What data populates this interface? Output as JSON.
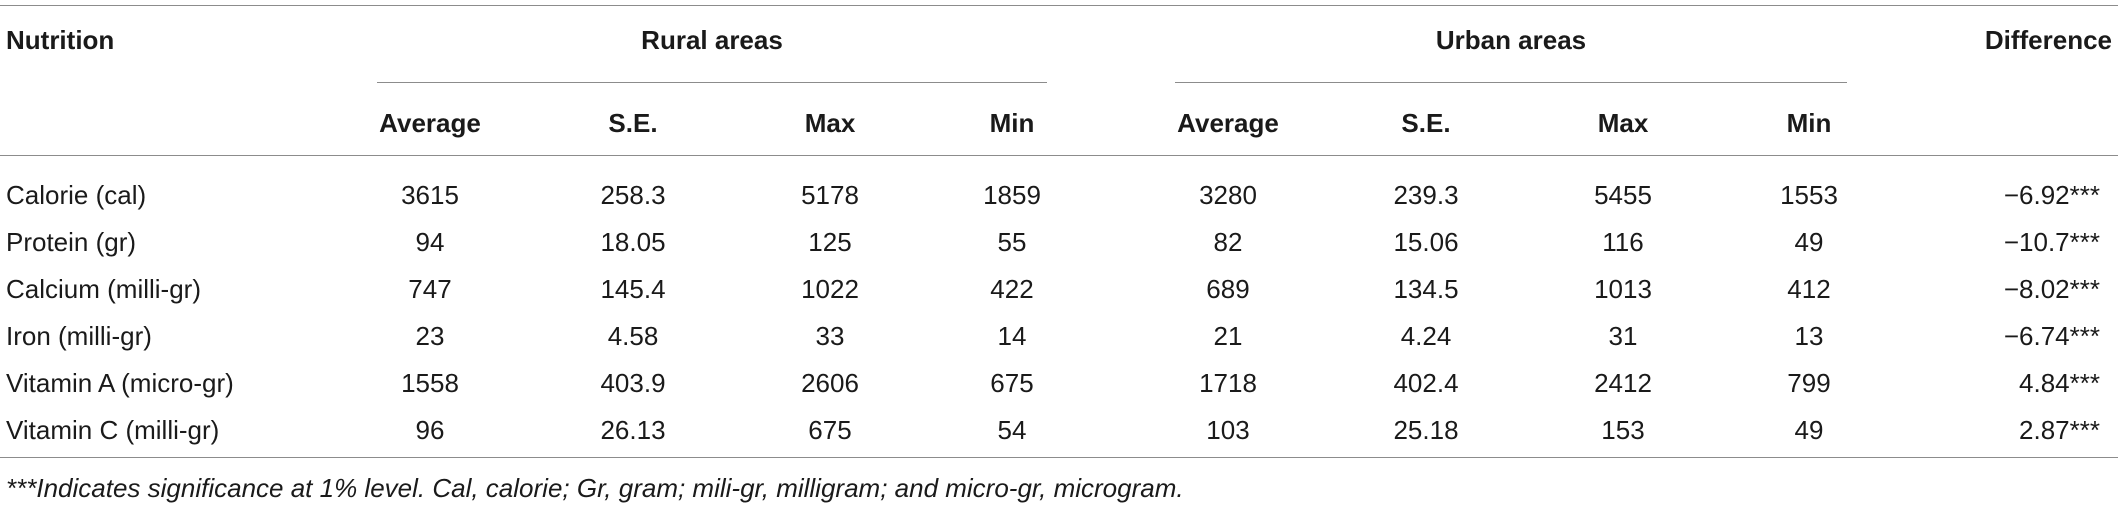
{
  "table": {
    "header": {
      "nutrition": "Nutrition",
      "rural": "Rural areas",
      "urban": "Urban areas",
      "difference": "Difference",
      "sub": [
        "Average",
        "S.E.",
        "Max",
        "Min",
        "Average",
        "S.E.",
        "Max",
        "Min"
      ]
    },
    "rows": [
      {
        "label": "Calorie (cal)",
        "values": [
          "3615",
          "258.3",
          "5178",
          "1859",
          "3280",
          "239.3",
          "5455",
          "1553"
        ],
        "difference": "−6.92***"
      },
      {
        "label": "Protein (gr)",
        "values": [
          "94",
          "18.05",
          "125",
          "55",
          "82",
          "15.06",
          "116",
          "49"
        ],
        "difference": "−10.7***"
      },
      {
        "label": "Calcium (milli-gr)",
        "values": [
          "747",
          "145.4",
          "1022",
          "422",
          "689",
          "134.5",
          "1013",
          "412"
        ],
        "difference": "−8.02***"
      },
      {
        "label": "Iron (milli-gr)",
        "values": [
          "23",
          "4.58",
          "33",
          "14",
          "21",
          "4.24",
          "31",
          "13"
        ],
        "difference": "−6.74***"
      },
      {
        "label": "Vitamin A (micro-gr)",
        "values": [
          "1558",
          "403.9",
          "2606",
          "675",
          "1718",
          "402.4",
          "2412",
          "799"
        ],
        "difference": "4.84***"
      },
      {
        "label": "Vitamin C (milli-gr)",
        "values": [
          "96",
          "26.13",
          "675",
          "54",
          "103",
          "25.18",
          "153",
          "49"
        ],
        "difference": "2.87***"
      }
    ],
    "footnote": "***Indicates significance at 1% level. Cal, calorie; Gr, gram; mili-gr, milligram; and micro-gr, microgram."
  }
}
